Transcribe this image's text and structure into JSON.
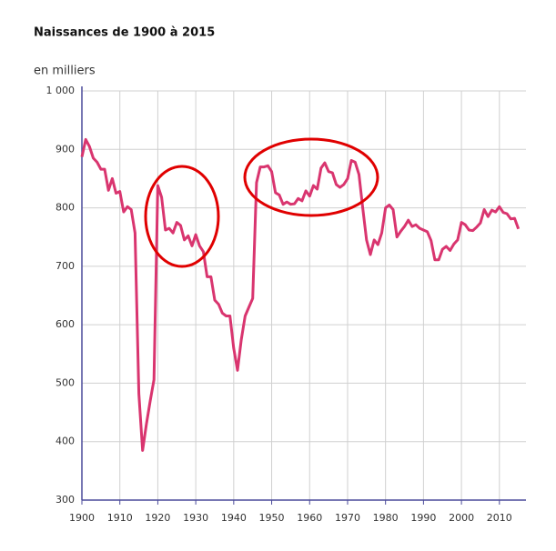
{
  "chart_data": {
    "type": "line",
    "title": "Naissances de 1900 à 2015",
    "y_label": "en milliers",
    "x": [
      1900,
      1901,
      1902,
      1903,
      1904,
      1905,
      1906,
      1907,
      1908,
      1909,
      1910,
      1911,
      1912,
      1913,
      1914,
      1915,
      1916,
      1917,
      1918,
      1919,
      1920,
      1921,
      1922,
      1923,
      1924,
      1925,
      1926,
      1927,
      1928,
      1929,
      1930,
      1931,
      1932,
      1933,
      1934,
      1935,
      1936,
      1937,
      1938,
      1939,
      1940,
      1941,
      1942,
      1943,
      1944,
      1945,
      1946,
      1947,
      1948,
      1949,
      1950,
      1951,
      1952,
      1953,
      1954,
      1955,
      1956,
      1957,
      1958,
      1959,
      1960,
      1961,
      1962,
      1963,
      1964,
      1965,
      1966,
      1967,
      1968,
      1969,
      1970,
      1971,
      1972,
      1973,
      1974,
      1975,
      1976,
      1977,
      1978,
      1979,
      1980,
      1981,
      1982,
      1983,
      1984,
      1985,
      1986,
      1987,
      1988,
      1989,
      1990,
      1991,
      1992,
      1993,
      1994,
      1995,
      1996,
      1997,
      1998,
      1999,
      2000,
      2001,
      2002,
      2003,
      2004,
      2005,
      2006,
      2007,
      2008,
      2009,
      2010,
      2011,
      2012,
      2013,
      2014,
      2015
    ],
    "values": [
      887,
      917,
      905,
      885,
      878,
      866,
      866,
      830,
      850,
      825,
      828,
      793,
      802,
      797,
      757,
      482,
      385,
      430,
      470,
      506,
      838,
      818,
      762,
      765,
      757,
      775,
      770,
      745,
      752,
      735,
      754,
      735,
      725,
      682,
      682,
      642,
      635,
      620,
      615,
      615,
      560,
      522,
      575,
      615,
      630,
      645,
      843,
      870,
      870,
      872,
      862,
      826,
      822,
      806,
      810,
      806,
      807,
      816,
      812,
      829,
      820,
      838,
      832,
      868,
      877,
      862,
      860,
      840,
      835,
      840,
      850,
      881,
      878,
      857,
      800,
      745,
      720,
      745,
      737,
      757,
      800,
      805,
      797,
      750,
      760,
      768,
      779,
      768,
      771,
      765,
      762,
      759,
      744,
      711,
      711,
      729,
      734,
      727,
      738,
      745,
      775,
      771,
      762,
      761,
      767,
      774,
      797,
      785,
      796,
      793,
      802,
      792,
      790,
      781,
      782,
      764
    ],
    "color": "#d9356f",
    "xlim": [
      1900,
      2017
    ],
    "xticks": [
      1900,
      1910,
      1920,
      1930,
      1940,
      1950,
      1960,
      1970,
      1980,
      1990,
      2000,
      2010
    ],
    "ylim": [
      300,
      1000
    ],
    "yticks": [
      300,
      400,
      500,
      600,
      700,
      800,
      900,
      {
        "value": 1000,
        "label": "1 000"
      }
    ],
    "grid": true
  }
}
